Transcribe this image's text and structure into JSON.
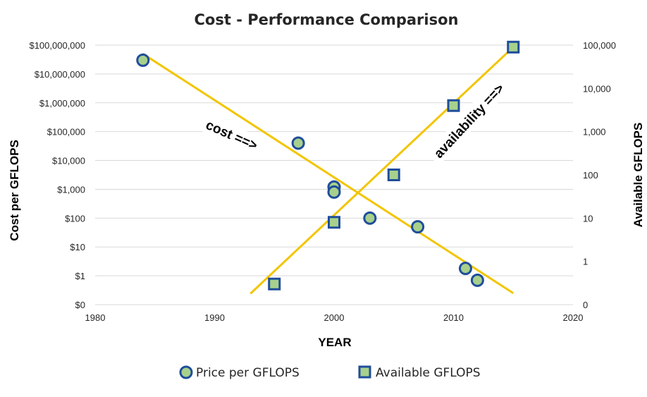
{
  "chart_data": {
    "type": "scatter",
    "title": "Cost - Performance Comparison",
    "xlabel": "YEAR",
    "ylabel": "Cost per GFLOPS",
    "y2label": "Available GFLOPS",
    "xlim": [
      1980,
      2020
    ],
    "x_ticks": [
      "1980",
      "1990",
      "2000",
      "2010",
      "2020"
    ],
    "y_ticks": [
      "$0",
      "$1",
      "$10",
      "$100",
      "$1,000",
      "$10,000",
      "$100,000",
      "$1,000,000",
      "$10,000,000",
      "$100,000,000"
    ],
    "y2_ticks": [
      "0",
      "1",
      "10",
      "100",
      "1,000",
      "10,000",
      "100,000"
    ],
    "annotations": [
      "cost ==>",
      "availability ==>"
    ],
    "legend_position": "bottom",
    "colors": {
      "marker_fill": "#a8d08d",
      "marker_edge": "#1f4e9a",
      "trendline": "#f2c500",
      "gridline": "#d9d9d9"
    },
    "series": [
      {
        "name": "Price per GFLOPS",
        "marker": "circle",
        "axis": "left",
        "points": [
          {
            "x": 1984,
            "y": 30000000
          },
          {
            "x": 1997,
            "y": 40000
          },
          {
            "x": 2000,
            "y": 1200
          },
          {
            "x": 2000,
            "y": 800
          },
          {
            "x": 2003,
            "y": 100
          },
          {
            "x": 2007,
            "y": 50
          },
          {
            "x": 2011,
            "y": 1.8
          },
          {
            "x": 2012,
            "y": 0.7
          }
        ],
        "trendline": [
          {
            "x": 1984,
            "y": 50000000
          },
          {
            "x": 2015,
            "y": 0.25
          }
        ]
      },
      {
        "name": "Available GFLOPS",
        "marker": "square",
        "axis": "right",
        "points": [
          {
            "x": 1995,
            "y": 0.3
          },
          {
            "x": 2000,
            "y": 8
          },
          {
            "x": 2005,
            "y": 100
          },
          {
            "x": 2010,
            "y": 4000
          },
          {
            "x": 2015,
            "y": 90000
          }
        ],
        "trendline": [
          {
            "x": 1993,
            "y": 0.18
          },
          {
            "x": 2015,
            "y": 90000
          }
        ]
      }
    ]
  }
}
